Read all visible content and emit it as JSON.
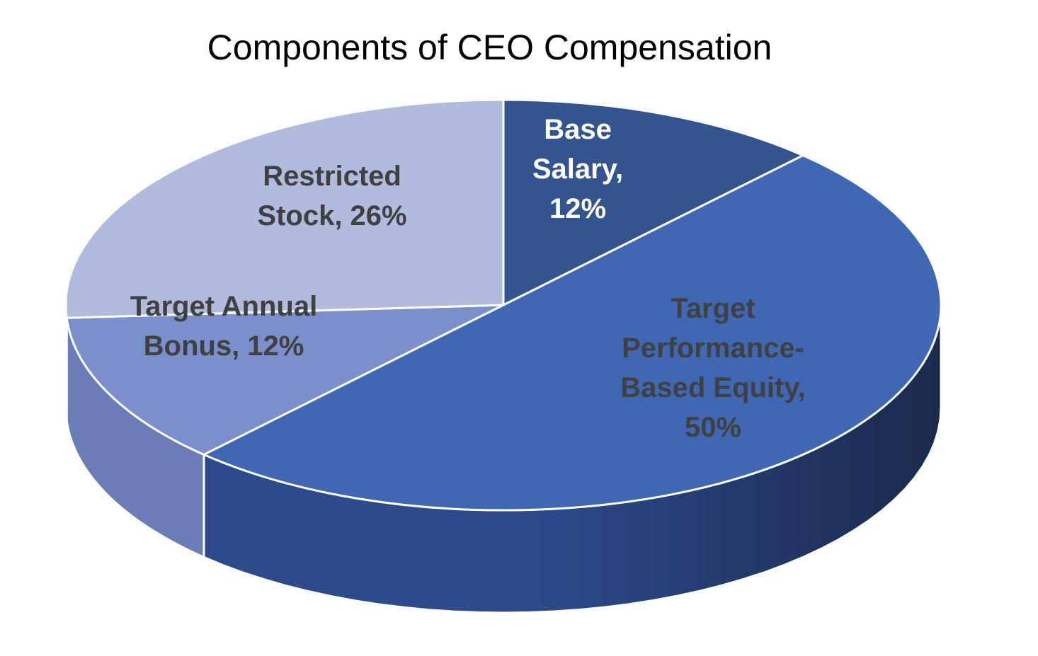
{
  "chart_data": {
    "type": "pie",
    "title": "Components of CEO Compensation",
    "slices": [
      {
        "name": "Base Salary",
        "value": 12,
        "label_lines": [
          "Base",
          "Salary,",
          "12%"
        ],
        "color": "#34548F",
        "label_color": "#FFFFFF"
      },
      {
        "name": "Target Performance-Based Equity",
        "value": 50,
        "label_lines": [
          "Target",
          "Performance-",
          "Based Equity,",
          "50%"
        ],
        "color": "#3F67B4",
        "label_color": "#404040"
      },
      {
        "name": "Target Annual Bonus",
        "value": 12,
        "label_lines": [
          "Target Annual",
          "Bonus, 12%"
        ],
        "color": "#7A8FCB",
        "label_color": "#404040"
      },
      {
        "name": "Restricted Stock",
        "value": 26,
        "label_lines": [
          "Restricted",
          "Stock, 26%"
        ],
        "color": "#B0BBDD",
        "label_color": "#404040"
      }
    ],
    "legend": "none",
    "style": "3d-pie"
  },
  "colors": {
    "side_dark": "#1B2A4D",
    "side_mid": "#2C4A8C",
    "side_light": "#6A7DB6",
    "edge": "#FFFFFF"
  }
}
